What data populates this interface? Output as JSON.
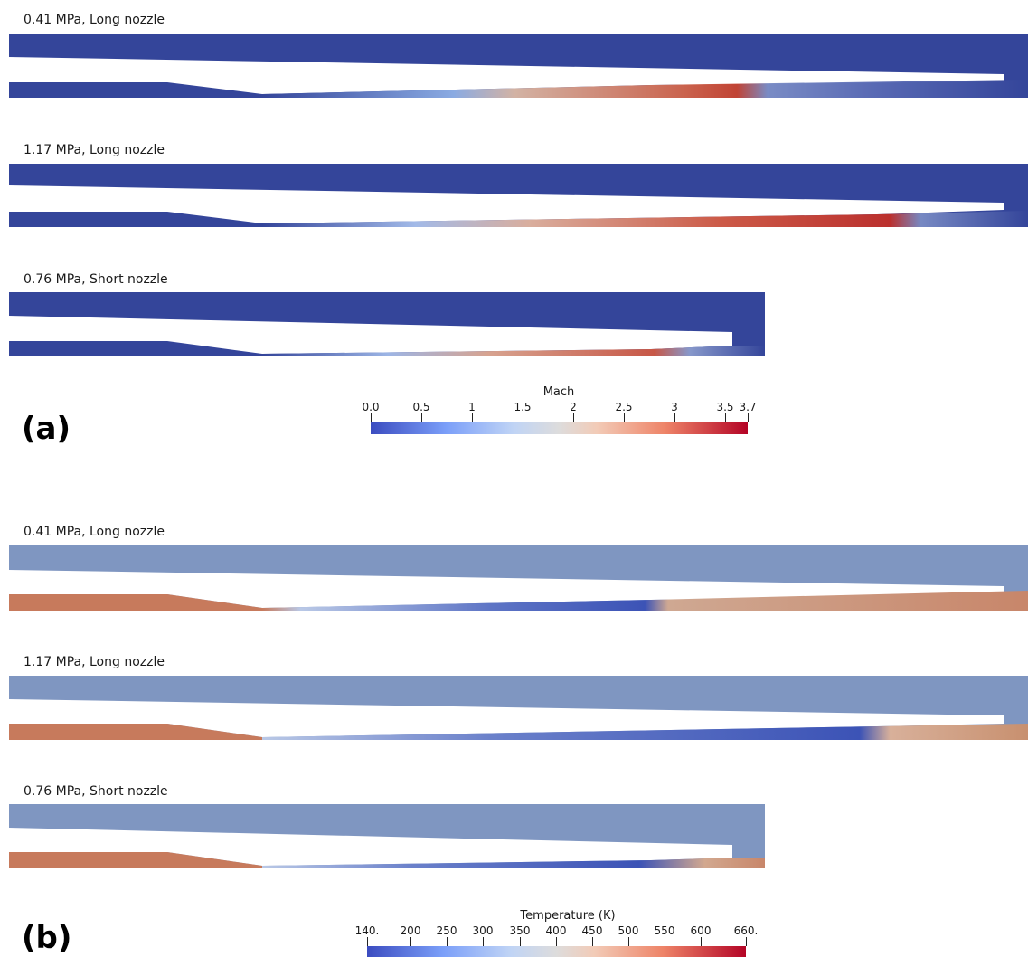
{
  "section_a": {
    "letter": "(a)",
    "panels": [
      {
        "label": "0.41 MPa, Long nozzle"
      },
      {
        "label": "1.17 MPa, Long nozzle"
      },
      {
        "label": "0.76 MPa, Short nozzle"
      }
    ],
    "colorbar": {
      "title": "Mach",
      "ticks": [
        "0.0",
        "0.5",
        "1",
        "1.5",
        "2",
        "2.5",
        "3",
        "3.5",
        "3.7"
      ]
    }
  },
  "section_b": {
    "letter": "(b)",
    "panels": [
      {
        "label": "0.41 MPa, Long nozzle"
      },
      {
        "label": "1.17 MPa, Long nozzle"
      },
      {
        "label": "0.76 MPa, Short nozzle"
      }
    ],
    "colorbar": {
      "title": "Temperature (K)",
      "ticks": [
        "140.",
        "200",
        "250",
        "300",
        "350",
        "400",
        "450",
        "500",
        "550",
        "600",
        "660."
      ]
    }
  },
  "colors": {
    "mach_field": "#34459a",
    "temp_field": "#7f96c1",
    "temp_hot": "#c77a5c"
  }
}
